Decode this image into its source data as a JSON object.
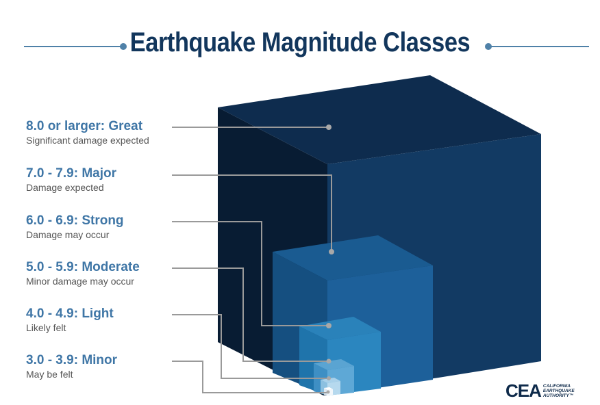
{
  "title": "Earthquake Magnitude Classes",
  "classes": [
    {
      "range": "8.0 or larger: Great",
      "description": "Significant damage expected"
    },
    {
      "range": "7.0 - 7.9: Major",
      "description": "Damage expected"
    },
    {
      "range": "6.0 - 6.9: Strong",
      "description": "Damage may occur"
    },
    {
      "range": "5.0 - 5.9: Moderate",
      "description": "Minor damage may occur"
    },
    {
      "range": "4.0 - 4.9: Light",
      "description": "Likely felt"
    },
    {
      "range": "3.0 - 3.9: Minor",
      "description": "May be felt"
    }
  ],
  "logo": {
    "mark": "CEA",
    "line1": "CALIFORNIA",
    "line2": "EARTHQUAKE",
    "line3": "AUTHORITY™"
  },
  "colors": {
    "title": "#12365c",
    "label": "#3f76a6",
    "description": "#555555",
    "connector": "#9a9a9a",
    "cube_great": "#0c2746",
    "cube_major": "#124a78",
    "cube_strong": "#1c6da3",
    "cube_moderate": "#3f8fc3",
    "cube_light": "#8cc0e0",
    "cube_minor": "#e8f1f8"
  }
}
